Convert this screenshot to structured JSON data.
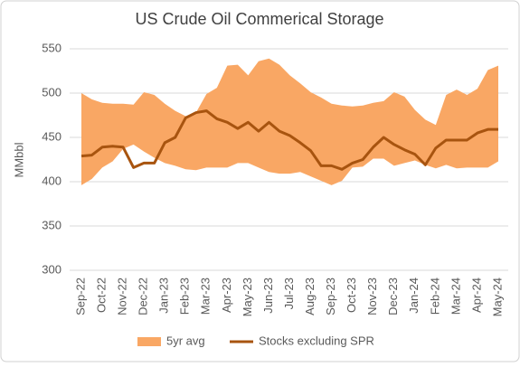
{
  "chart_data": {
    "type": "line",
    "title": "US Crude Oil Commerical Storage",
    "y_label": "MMbbl",
    "categories": [
      "Sep-22",
      null,
      "Oct-22",
      null,
      "Nov-22",
      null,
      "Dec-22",
      null,
      "Jan-23",
      null,
      "Feb-23",
      null,
      "Mar-23",
      null,
      "Apr-23",
      null,
      "May-23",
      null,
      "Jun-23",
      null,
      "Jul-23",
      null,
      "Aug-23",
      null,
      "Sep-23",
      null,
      "Oct-23",
      null,
      "Nov-23",
      null,
      "Dec-23",
      null,
      "Jan-24",
      null,
      "Feb-24",
      null,
      "Mar-24",
      null,
      "Apr-24",
      null,
      "May-24"
    ],
    "series": [
      {
        "name": "5yr avg",
        "type": "band",
        "color": "#f9a764",
        "high": [
          500,
          493,
          489,
          488,
          488,
          487,
          501,
          498,
          488,
          480,
          474,
          478,
          499,
          506,
          531,
          532,
          520,
          536,
          539,
          532,
          520,
          511,
          501,
          495,
          488,
          486,
          485,
          486,
          489,
          491,
          501,
          496,
          481,
          470,
          464,
          498,
          504,
          498,
          505,
          526,
          531
        ],
        "low": [
          396,
          403,
          416,
          423,
          437,
          442,
          434,
          427,
          421,
          418,
          414,
          413,
          416,
          416,
          416,
          421,
          421,
          416,
          411,
          409,
          409,
          411,
          406,
          401,
          396,
          401,
          416,
          417,
          426,
          426,
          418,
          421,
          424,
          419,
          415,
          419,
          415,
          416,
          416,
          416,
          423
        ]
      },
      {
        "name": "Stocks excluding SPR",
        "type": "line",
        "color": "#a8540f",
        "values": [
          429,
          430,
          439,
          440,
          439,
          416,
          421,
          421,
          444,
          450,
          472,
          478,
          480,
          471,
          467,
          460,
          467,
          457,
          467,
          457,
          452,
          444,
          435,
          418,
          418,
          414,
          421,
          425,
          439,
          450,
          442,
          436,
          431,
          419,
          438,
          447,
          447,
          447,
          455,
          459,
          459
        ]
      }
    ],
    "ylim": [
      300,
      550
    ],
    "yticks": [
      300,
      350,
      400,
      450,
      500,
      550
    ],
    "grid": true,
    "legend": "bottom"
  }
}
